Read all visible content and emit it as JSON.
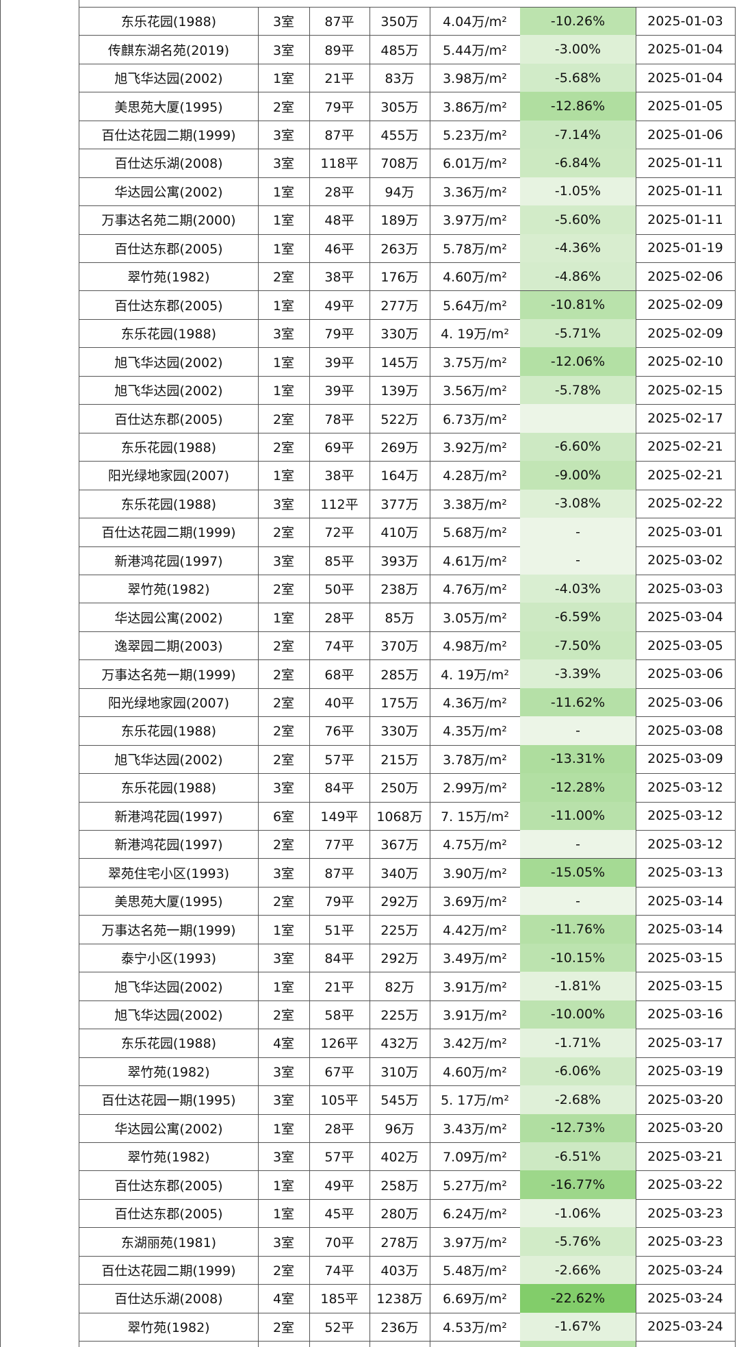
{
  "table": {
    "rows": [
      [
        "东乐花园(1988)",
        "3室",
        "87平",
        "350万",
        "4.04万/m²",
        "-10.26%",
        "2025-01-03"
      ],
      [
        "传麒东湖名苑(2019)",
        "3室",
        "89平",
        "485万",
        "5.44万/m²",
        "-3.00%",
        "2025-01-04"
      ],
      [
        "旭飞华达园(2002)",
        "1室",
        "21平",
        "83万",
        "3.98万/m²",
        "-5.68%",
        "2025-01-04"
      ],
      [
        "美思苑大厦(1995)",
        "2室",
        "79平",
        "305万",
        "3.86万/m²",
        "-12.86%",
        "2025-01-05"
      ],
      [
        "百仕达花园二期(1999)",
        "3室",
        "87平",
        "455万",
        "5.23万/m²",
        "-7.14%",
        "2025-01-06"
      ],
      [
        "百仕达乐湖(2008)",
        "3室",
        "118平",
        "708万",
        "6.01万/m²",
        "-6.84%",
        "2025-01-11"
      ],
      [
        "华达园公寓(2002)",
        "1室",
        "28平",
        "94万",
        "3.36万/m²",
        "-1.05%",
        "2025-01-11"
      ],
      [
        "万事达名苑二期(2000)",
        "1室",
        "48平",
        "189万",
        "3.97万/m²",
        "-5.60%",
        "2025-01-11"
      ],
      [
        "百仕达东郡(2005)",
        "1室",
        "46平",
        "263万",
        "5.78万/m²",
        "-4.36%",
        "2025-01-19"
      ],
      [
        "翠竹苑(1982)",
        "2室",
        "38平",
        "176万",
        "4.60万/m²",
        "-4.86%",
        "2025-02-06"
      ],
      [
        "百仕达东郡(2005)",
        "1室",
        "49平",
        "277万",
        "5.64万/m²",
        "-10.81%",
        "2025-02-09"
      ],
      [
        "东乐花园(1988)",
        "3室",
        "79平",
        "330万",
        "4. 19万/m²",
        "-5.71%",
        "2025-02-09"
      ],
      [
        "旭飞华达园(2002)",
        "1室",
        "39平",
        "145万",
        "3.75万/m²",
        "-12.06%",
        "2025-02-10"
      ],
      [
        "旭飞华达园(2002)",
        "1室",
        "39平",
        "139万",
        "3.56万/m²",
        "-5.78%",
        "2025-02-15"
      ],
      [
        "百仕达东郡(2005)",
        "2室",
        "78平",
        "522万",
        "6.73万/m²",
        null,
        "2025-02-17"
      ],
      [
        "东乐花园(1988)",
        "2室",
        "69平",
        "269万",
        "3.92万/m²",
        "-6.60%",
        "2025-02-21"
      ],
      [
        "阳光绿地家园(2007)",
        "1室",
        "38平",
        "164万",
        "4.28万/m²",
        "-9.00%",
        "2025-02-21"
      ],
      [
        "东乐花园(1988)",
        "3室",
        "112平",
        "377万",
        "3.38万/m²",
        "-3.08%",
        "2025-02-22"
      ],
      [
        "百仕达花园二期(1999)",
        "2室",
        "72平",
        "410万",
        "5.68万/m²",
        "-",
        "2025-03-01"
      ],
      [
        "新港鸿花园(1997)",
        "3室",
        "85平",
        "393万",
        "4.61万/m²",
        "-",
        "2025-03-02"
      ],
      [
        "翠竹苑(1982)",
        "2室",
        "50平",
        "238万",
        "4.76万/m²",
        "-4.03%",
        "2025-03-03"
      ],
      [
        "华达园公寓(2002)",
        "1室",
        "28平",
        "85万",
        "3.05万/m²",
        "-6.59%",
        "2025-03-04"
      ],
      [
        "逸翠园二期(2003)",
        "2室",
        "74平",
        "370万",
        "4.98万/m²",
        "-7.50%",
        "2025-03-05"
      ],
      [
        "万事达名苑一期(1999)",
        "2室",
        "68平",
        "285万",
        "4. 19万/m²",
        "-3.39%",
        "2025-03-06"
      ],
      [
        "阳光绿地家园(2007)",
        "2室",
        "40平",
        "175万",
        "4.36万/m²",
        "-11.62%",
        "2025-03-06"
      ],
      [
        "东乐花园(1988)",
        "2室",
        "76平",
        "330万",
        "4.35万/m²",
        "-",
        "2025-03-08"
      ],
      [
        "旭飞华达园(2002)",
        "2室",
        "57平",
        "215万",
        "3.78万/m²",
        "-13.31%",
        "2025-03-09"
      ],
      [
        "东乐花园(1988)",
        "3室",
        "84平",
        "250万",
        "2.99万/m²",
        "-12.28%",
        "2025-03-12"
      ],
      [
        "新港鸿花园(1997)",
        "6室",
        "149平",
        "1068万",
        "7. 15万/m²",
        "-11.00%",
        "2025-03-12"
      ],
      [
        "新港鸿花园(1997)",
        "2室",
        "77平",
        "367万",
        "4.75万/m²",
        "-",
        "2025-03-12"
      ],
      [
        "翠苑住宅小区(1993)",
        "3室",
        "87平",
        "340万",
        "3.90万/m²",
        "-15.05%",
        "2025-03-13"
      ],
      [
        "美思苑大厦(1995)",
        "2室",
        "79平",
        "292万",
        "3.69万/m²",
        "-",
        "2025-03-14"
      ],
      [
        "万事达名苑一期(1999)",
        "1室",
        "51平",
        "225万",
        "4.42万/m²",
        "-11.76%",
        "2025-03-14"
      ],
      [
        "泰宁小区(1993)",
        "3室",
        "84平",
        "292万",
        "3.49万/m²",
        "-10.15%",
        "2025-03-15"
      ],
      [
        "旭飞华达园(2002)",
        "1室",
        "21平",
        "82万",
        "3.91万/m²",
        "-1.81%",
        "2025-03-15"
      ],
      [
        "旭飞华达园(2002)",
        "2室",
        "58平",
        "225万",
        "3.91万/m²",
        "-10.00%",
        "2025-03-16"
      ],
      [
        "东乐花园(1988)",
        "4室",
        "126平",
        "432万",
        "3.42万/m²",
        "-1.71%",
        "2025-03-17"
      ],
      [
        "翠竹苑(1982)",
        "3室",
        "67平",
        "310万",
        "4.60万/m²",
        "-6.06%",
        "2025-03-19"
      ],
      [
        "百仕达花园一期(1995)",
        "3室",
        "105平",
        "545万",
        "5. 17万/m²",
        "-2.68%",
        "2025-03-20"
      ],
      [
        "华达园公寓(2002)",
        "1室",
        "28平",
        "96万",
        "3.43万/m²",
        "-12.73%",
        "2025-03-20"
      ],
      [
        "翠竹苑(1982)",
        "3室",
        "57平",
        "402万",
        "7.09万/m²",
        "-6.51%",
        "2025-03-21"
      ],
      [
        "百仕达东郡(2005)",
        "1室",
        "49平",
        "258万",
        "5.27万/m²",
        "-16.77%",
        "2025-03-22"
      ],
      [
        "百仕达东郡(2005)",
        "1室",
        "45平",
        "280万",
        "6.24万/m²",
        "-1.06%",
        "2025-03-23"
      ],
      [
        "东湖丽苑(1981)",
        "3室",
        "70平",
        "278万",
        "3.97万/m²",
        "-5.76%",
        "2025-03-23"
      ],
      [
        "百仕达花园二期(1999)",
        "2室",
        "74平",
        "403万",
        "5.48万/m²",
        "-2.66%",
        "2025-03-24"
      ],
      [
        "百仕达乐湖(2008)",
        "4室",
        "185平",
        "1238万",
        "6.69万/m²",
        "-22.62%",
        "2025-03-24"
      ],
      [
        "翠竹苑(1982)",
        "2室",
        "52平",
        "236万",
        "4.53万/m²",
        "-1.67%",
        "2025-03-24"
      ]
    ]
  }
}
